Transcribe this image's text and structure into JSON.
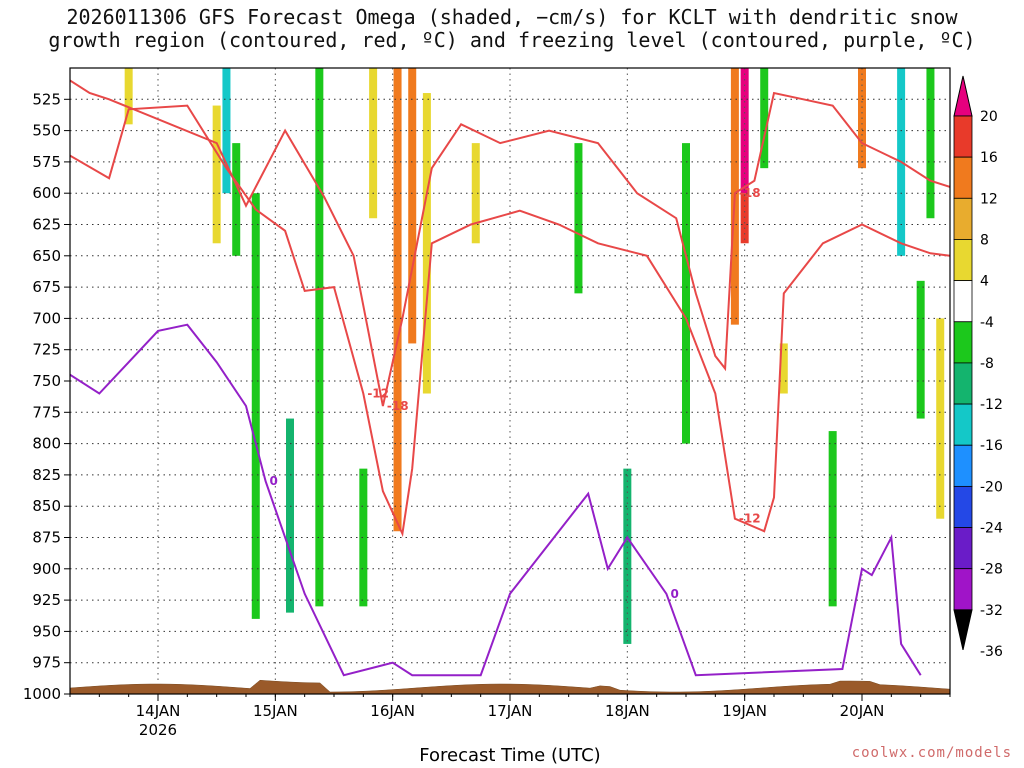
{
  "title_line1": "2026011306 GFS Forecast Omega (shaded, −cm/s) for KCLT with dendritic snow",
  "title_line2": "growth region (contoured, red, ºC) and freezing level (contoured, purple, ºC)",
  "xlabel": "Forecast Time (UTC)",
  "credit": "coolwx.com/models",
  "chart_data": {
    "type": "heatmap",
    "y_axis": {
      "label": "",
      "ticks": [
        "525",
        "550",
        "575",
        "600",
        "625",
        "650",
        "675",
        "700",
        "725",
        "750",
        "775",
        "800",
        "825",
        "850",
        "875",
        "900",
        "925",
        "950",
        "975",
        "1000"
      ],
      "ylim": [
        500,
        1000
      ],
      "direction": "pressure decreasing upward (hPa)"
    },
    "x_axis": {
      "ticks": [
        "14JAN",
        "15JAN",
        "16JAN",
        "17JAN",
        "18JAN",
        "19JAN",
        "20JAN"
      ],
      "year_label": "2026",
      "xlim": [
        "2026-01-13T06",
        "2026-01-20T18"
      ]
    },
    "colorbar": {
      "levels": [
        "20",
        "16",
        "12",
        "8",
        "4",
        "-4",
        "-8",
        "-12",
        "-16",
        "-20",
        "-24",
        "-28",
        "-32",
        "-36"
      ],
      "colors": [
        "#e6007e",
        "#e83a2a",
        "#f07a1e",
        "#e8ac2e",
        "#e8d830",
        "#ffffff",
        "#1cc81c",
        "#14b46e",
        "#14c8c8",
        "#1e90ff",
        "#2448e6",
        "#6a1cc8",
        "#a014c8",
        "#a0a0a0"
      ]
    },
    "shading_cells": [
      {
        "x": "2026-01-13T18",
        "p0": 500,
        "p1": 545,
        "value": 4
      },
      {
        "x": "2026-01-14T12",
        "p0": 530,
        "p1": 640,
        "value": 4
      },
      {
        "x": "2026-01-14T14",
        "p0": 500,
        "p1": 600,
        "value": -16
      },
      {
        "x": "2026-01-14T16",
        "p0": 560,
        "p1": 650,
        "value": -8
      },
      {
        "x": "2026-01-14T20",
        "p0": 600,
        "p1": 940,
        "value": -8
      },
      {
        "x": "2026-01-15T03",
        "p0": 780,
        "p1": 935,
        "value": -12
      },
      {
        "x": "2026-01-15T09",
        "p0": 500,
        "p1": 930,
        "value": -8
      },
      {
        "x": "2026-01-15T18",
        "p0": 820,
        "p1": 930,
        "value": -8
      },
      {
        "x": "2026-01-15T20",
        "p0": 500,
        "p1": 620,
        "value": 4
      },
      {
        "x": "2026-01-16T01",
        "p0": 500,
        "p1": 870,
        "value": 12
      },
      {
        "x": "2026-01-16T04",
        "p0": 500,
        "p1": 720,
        "value": 12
      },
      {
        "x": "2026-01-16T07",
        "p0": 520,
        "p1": 760,
        "value": 4
      },
      {
        "x": "2026-01-16T17",
        "p0": 560,
        "p1": 640,
        "value": 4
      },
      {
        "x": "2026-01-17T14",
        "p0": 560,
        "p1": 680,
        "value": -8
      },
      {
        "x": "2026-01-18T00",
        "p0": 820,
        "p1": 960,
        "value": -12
      },
      {
        "x": "2026-01-18T12",
        "p0": 560,
        "p1": 800,
        "value": -8
      },
      {
        "x": "2026-01-18T22",
        "p0": 500,
        "p1": 705,
        "value": 12
      },
      {
        "x": "2026-01-19T00",
        "p0": 500,
        "p1": 600,
        "value": 20
      },
      {
        "x": "2026-01-19T00",
        "p0": 600,
        "p1": 640,
        "value": 16
      },
      {
        "x": "2026-01-19T04",
        "p0": 500,
        "p1": 580,
        "value": -8
      },
      {
        "x": "2026-01-19T08",
        "p0": 720,
        "p1": 760,
        "value": 4
      },
      {
        "x": "2026-01-19T18",
        "p0": 790,
        "p1": 930,
        "value": -8
      },
      {
        "x": "2026-01-20T00",
        "p0": 500,
        "p1": 580,
        "value": 12
      },
      {
        "x": "2026-01-20T08",
        "p0": 500,
        "p1": 650,
        "value": -16
      },
      {
        "x": "2026-01-20T12",
        "p0": 670,
        "p1": 780,
        "value": -8
      },
      {
        "x": "2026-01-20T14",
        "p0": 500,
        "p1": 620,
        "value": -8
      },
      {
        "x": "2026-01-20T16",
        "p0": 700,
        "p1": 860,
        "value": 4
      }
    ],
    "contours": [
      {
        "name": "-12",
        "color": "#e84848",
        "label_text": "-12",
        "points": [
          [
            "2026-01-13T06",
            570
          ],
          [
            "2026-01-13T14",
            588
          ],
          [
            "2026-01-13T18",
            533
          ],
          [
            "2026-01-14T06",
            530
          ],
          [
            "2026-01-14T14",
            580
          ],
          [
            "2026-01-14T20",
            613
          ],
          [
            "2026-01-15T02",
            630
          ],
          [
            "2026-01-15T06",
            678
          ],
          [
            "2026-01-15T12",
            675
          ],
          [
            "2026-01-15T18",
            760
          ],
          [
            "2026-01-15T22",
            838
          ],
          [
            "2026-01-16T02",
            872
          ],
          [
            "2026-01-16T04",
            820
          ],
          [
            "2026-01-16T08",
            640
          ],
          [
            "2026-01-16T16",
            625
          ],
          [
            "2026-01-17T02",
            614
          ],
          [
            "2026-01-17T10",
            625
          ],
          [
            "2026-01-17T18",
            640
          ],
          [
            "2026-01-18T04",
            650
          ],
          [
            "2026-01-18T12",
            700
          ],
          [
            "2026-01-18T18",
            760
          ],
          [
            "2026-01-18T22",
            860
          ],
          [
            "2026-01-19T04",
            870
          ],
          [
            "2026-01-19T06",
            843
          ],
          [
            "2026-01-19T08",
            680
          ],
          [
            "2026-01-19T16",
            640
          ],
          [
            "2026-01-20T00",
            625
          ],
          [
            "2026-01-20T08",
            640
          ],
          [
            "2026-01-20T14",
            648
          ],
          [
            "2026-01-20T18",
            650
          ]
        ]
      },
      {
        "name": "-18",
        "color": "#e84848",
        "label_text": "-18",
        "points": [
          [
            "2026-01-13T06",
            510
          ],
          [
            "2026-01-13T10",
            520
          ],
          [
            "2026-01-13T14",
            525
          ],
          [
            "2026-01-14T12",
            560
          ],
          [
            "2026-01-14T18",
            610
          ],
          [
            "2026-01-15T02",
            550
          ],
          [
            "2026-01-15T10",
            603
          ],
          [
            "2026-01-15T16",
            650
          ],
          [
            "2026-01-15T22",
            770
          ],
          [
            "2026-01-16T02",
            700
          ],
          [
            "2026-01-16T08",
            580
          ],
          [
            "2026-01-16T14",
            545
          ],
          [
            "2026-01-16T22",
            560
          ],
          [
            "2026-01-17T08",
            550
          ],
          [
            "2026-01-17T18",
            560
          ],
          [
            "2026-01-18T02",
            600
          ],
          [
            "2026-01-18T10",
            620
          ],
          [
            "2026-01-18T14",
            680
          ],
          [
            "2026-01-18T18",
            730
          ],
          [
            "2026-01-18T20",
            740
          ],
          [
            "2026-01-18T22",
            600
          ],
          [
            "2026-01-19T02",
            590
          ],
          [
            "2026-01-19T06",
            520
          ],
          [
            "2026-01-19T12",
            525
          ],
          [
            "2026-01-19T18",
            530
          ],
          [
            "2026-01-20T00",
            560
          ],
          [
            "2026-01-20T08",
            575
          ],
          [
            "2026-01-20T14",
            590
          ],
          [
            "2026-01-20T18",
            595
          ]
        ]
      },
      {
        "name": "0",
        "color": "#9420c8",
        "label_text": "0",
        "points": [
          [
            "2026-01-13T06",
            745
          ],
          [
            "2026-01-13T12",
            760
          ],
          [
            "2026-01-13T18",
            735
          ],
          [
            "2026-01-14T00",
            710
          ],
          [
            "2026-01-14T06",
            705
          ],
          [
            "2026-01-14T12",
            735
          ],
          [
            "2026-01-14T18",
            770
          ],
          [
            "2026-01-14T22",
            830
          ],
          [
            "2026-01-15T06",
            920
          ],
          [
            "2026-01-15T14",
            985
          ],
          [
            "2026-01-16T00",
            975
          ],
          [
            "2026-01-16T04",
            985
          ],
          [
            "2026-01-16T18",
            985
          ],
          [
            "2026-01-17T00",
            920
          ],
          [
            "2026-01-17T08",
            880
          ],
          [
            "2026-01-17T16",
            840
          ],
          [
            "2026-01-17T20",
            900
          ],
          [
            "2026-01-18T00",
            875
          ],
          [
            "2026-01-18T08",
            920
          ],
          [
            "2026-01-18T14",
            985
          ],
          [
            "2026-01-19T20",
            980
          ],
          [
            "2026-01-20T00",
            900
          ],
          [
            "2026-01-20T02",
            905
          ],
          [
            "2026-01-20T06",
            875
          ],
          [
            "2026-01-20T08",
            960
          ],
          [
            "2026-01-20T12",
            985
          ]
        ]
      }
    ],
    "terrain_color": "#9a5a2a"
  }
}
